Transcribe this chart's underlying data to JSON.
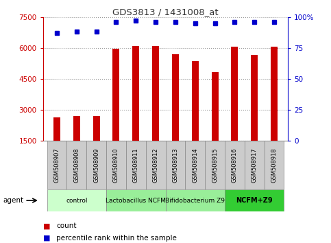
{
  "title": "GDS3813 / 1431008_at",
  "samples": [
    "GSM508907",
    "GSM508908",
    "GSM508909",
    "GSM508910",
    "GSM508911",
    "GSM508912",
    "GSM508913",
    "GSM508914",
    "GSM508915",
    "GSM508916",
    "GSM508917",
    "GSM508918"
  ],
  "counts": [
    2650,
    2700,
    2720,
    5950,
    6100,
    6100,
    5700,
    5350,
    4850,
    6050,
    5650,
    6050
  ],
  "percentile_ranks": [
    87,
    88,
    88,
    96,
    97,
    96,
    96,
    95,
    95,
    96,
    96,
    96
  ],
  "bar_color": "#cc0000",
  "dot_color": "#0000cc",
  "ylim_left": [
    1500,
    7500
  ],
  "yticks_left": [
    1500,
    3000,
    4500,
    6000,
    7500
  ],
  "ylim_right": [
    0,
    100
  ],
  "yticks_right": [
    0,
    25,
    50,
    75,
    100
  ],
  "groups": [
    {
      "label": "control",
      "start": 0,
      "end": 3,
      "color": "#ccffcc"
    },
    {
      "label": "Lactobacillus NCFM",
      "start": 3,
      "end": 6,
      "color": "#99ee99"
    },
    {
      "label": "Bifidobacterium Z9",
      "start": 6,
      "end": 9,
      "color": "#99ee99"
    },
    {
      "label": "NCFM+Z9",
      "start": 9,
      "end": 12,
      "color": "#33cc33"
    }
  ],
  "agent_label": "agent",
  "legend_count_label": "count",
  "legend_pct_label": "percentile rank within the sample",
  "title_color": "#333333",
  "left_axis_color": "#cc0000",
  "right_axis_color": "#0000cc",
  "grid_color": "#999999",
  "tick_area_color": "#cccccc",
  "tick_border_color": "#888888",
  "fig_width": 4.83,
  "fig_height": 3.54,
  "dpi": 100
}
